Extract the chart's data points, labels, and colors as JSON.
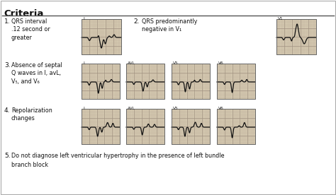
{
  "title": "Criteria",
  "bg_color": "#ffffff",
  "border_color": "#999999",
  "ekg_bg": "#d4c8b0",
  "ekg_color": "#111111",
  "text_color": "#111111",
  "grid_major": "#a09080",
  "grid_minor": "#bcad98",
  "criteria": [
    {
      "num": "1.",
      "text": "QRS interval\n.12 second or\ngreater",
      "boxes": [
        {
          "label": "I",
          "type": "lbbb_wide"
        }
      ],
      "layout": "left"
    },
    {
      "num": "2.",
      "text": "QRS predominantly\nnegative in V₁",
      "boxes": [
        {
          "label": "V1",
          "type": "v1_neg"
        }
      ],
      "layout": "right"
    },
    {
      "num": "3.",
      "text": "Absence of septal\nQ waves in I, avL,\nV₅, and V₆",
      "boxes": [
        {
          "label": "I",
          "type": "no_q_i"
        },
        {
          "label": "AVL",
          "type": "no_q_avl"
        },
        {
          "label": "V5",
          "type": "no_q_v5"
        },
        {
          "label": "V6",
          "type": "no_q_v6"
        }
      ],
      "layout": "row4"
    },
    {
      "num": "4.",
      "text": "Repolarization\nchanges",
      "boxes": [
        {
          "label": "I",
          "type": "repol_i"
        },
        {
          "label": "AVL",
          "type": "repol_avl"
        },
        {
          "label": "V5",
          "type": "repol_v5"
        },
        {
          "label": "V6",
          "type": "repol_v6"
        }
      ],
      "layout": "row4"
    },
    {
      "num": "5.",
      "text": "Do not diagnose left ventricular hypertrophy in the presence of left bundle\nbranch block",
      "boxes": [],
      "layout": "text_only"
    }
  ]
}
